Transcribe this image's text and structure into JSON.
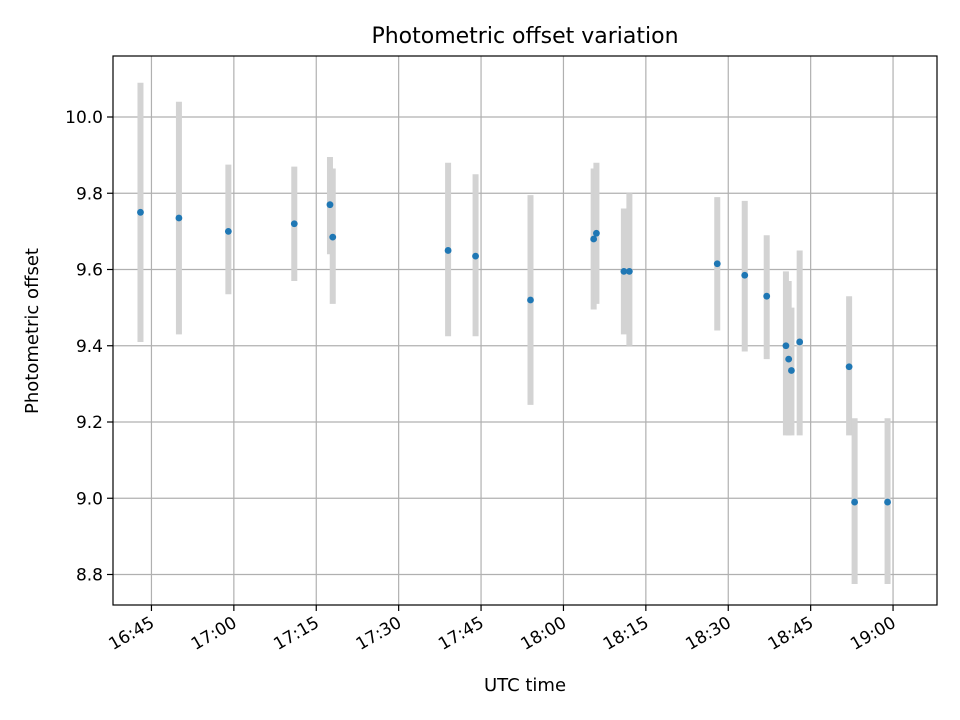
{
  "chart_data": {
    "type": "scatter",
    "title": "Photometric offset variation",
    "xlabel": "UTC time",
    "ylabel": "Photometric offset",
    "grid": true,
    "xlim": [
      "16:38",
      "19:08"
    ],
    "ylim": [
      8.72,
      10.16
    ],
    "xticks": [
      "16:45",
      "17:00",
      "17:15",
      "17:30",
      "17:45",
      "18:00",
      "18:15",
      "18:30",
      "18:45",
      "19:00"
    ],
    "yticks": [
      "8.8",
      "9.0",
      "9.2",
      "9.4",
      "9.6",
      "9.8",
      "10.0"
    ],
    "colors": {
      "points": "#1f77b4",
      "errorbars": "#d3d3d3",
      "grid": "#b0b0b0"
    },
    "series": [
      {
        "x": [
          "16:43",
          "16:50",
          "16:59",
          "17:11",
          "17:17.5",
          "17:18",
          "17:39",
          "17:44",
          "17:54",
          "18:05.5",
          "18:06",
          "18:11",
          "18:12",
          "18:28",
          "18:33",
          "18:37",
          "18:40.5",
          "18:41",
          "18:41.5",
          "18:43",
          "18:52",
          "18:53",
          "18:59"
        ],
        "y": [
          9.75,
          9.735,
          9.7,
          9.72,
          9.77,
          9.685,
          9.65,
          9.635,
          9.52,
          9.68,
          9.695,
          9.595,
          9.595,
          9.615,
          9.585,
          9.53,
          9.4,
          9.365,
          9.335,
          9.41,
          9.345,
          8.99,
          8.99
        ],
        "err_low": [
          9.41,
          9.43,
          9.535,
          9.57,
          9.64,
          9.51,
          9.425,
          9.425,
          9.245,
          9.495,
          9.51,
          9.43,
          9.4,
          9.44,
          9.385,
          9.365,
          9.165,
          9.165,
          9.165,
          9.165,
          9.165,
          8.775,
          8.775
        ],
        "err_high": [
          10.09,
          10.04,
          9.875,
          9.87,
          9.895,
          9.865,
          9.88,
          9.85,
          9.795,
          9.865,
          9.88,
          9.76,
          9.8,
          9.79,
          9.78,
          9.69,
          9.595,
          9.57,
          9.5,
          9.65,
          9.53,
          9.21,
          9.21
        ]
      }
    ]
  }
}
